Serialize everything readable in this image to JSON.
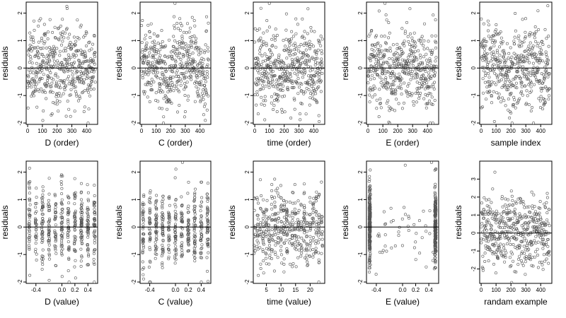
{
  "chart_data": [
    {
      "type": "scatter",
      "xlabel": "D (order)",
      "ylabel": "residuals",
      "xlim": [
        -10,
        475
      ],
      "ylim": [
        -2.05,
        2.4
      ],
      "xticks": [
        0,
        100,
        200,
        300,
        400
      ],
      "yticks": [
        -2,
        -1,
        0,
        1,
        2
      ],
      "reference_line": 0,
      "n_points": 460,
      "pattern": "index",
      "seed": 11
    },
    {
      "type": "scatter",
      "xlabel": "C (order)",
      "ylabel": "residuals",
      "xlim": [
        -10,
        475
      ],
      "ylim": [
        -2.05,
        2.4
      ],
      "xticks": [
        0,
        100,
        200,
        300,
        400
      ],
      "yticks": [
        -2,
        -1,
        0,
        1,
        2
      ],
      "reference_line": 0,
      "n_points": 460,
      "pattern": "index",
      "seed": 23
    },
    {
      "type": "scatter",
      "xlabel": "time (order)",
      "ylabel": "residuals",
      "xlim": [
        -10,
        475
      ],
      "ylim": [
        -2.05,
        2.4
      ],
      "xticks": [
        0,
        100,
        200,
        300,
        400
      ],
      "yticks": [
        -2,
        -1,
        0,
        1,
        2
      ],
      "reference_line": 0,
      "n_points": 460,
      "pattern": "index",
      "seed": 37
    },
    {
      "type": "scatter",
      "xlabel": "E (order)",
      "ylabel": "residuals",
      "xlim": [
        -10,
        475
      ],
      "ylim": [
        -2.05,
        2.4
      ],
      "xticks": [
        0,
        100,
        200,
        300,
        400
      ],
      "yticks": [
        -2,
        -1,
        0,
        1,
        2
      ],
      "reference_line": 0,
      "n_points": 460,
      "pattern": "index",
      "seed": 41
    },
    {
      "type": "scatter",
      "xlabel": "sample index",
      "ylabel": "residuals",
      "xlim": [
        -10,
        475
      ],
      "ylim": [
        -2.05,
        2.4
      ],
      "xticks": [
        0,
        100,
        200,
        300,
        400
      ],
      "yticks": [
        -2,
        -1,
        0,
        1,
        2
      ],
      "reference_line": 0,
      "n_points": 460,
      "pattern": "index",
      "seed": 53
    },
    {
      "type": "scatter",
      "xlabel": "D (value)",
      "ylabel": "residuals",
      "xlim": [
        -0.55,
        0.55
      ],
      "ylim": [
        -2.05,
        2.4
      ],
      "xticks": [
        -0.4,
        0,
        0.2,
        0.4
      ],
      "xtick_labels": [
        "-0.4",
        "0.0",
        "0.2",
        "0.4"
      ],
      "yticks": [
        -2,
        -1,
        0,
        1,
        2
      ],
      "reference_line": 0,
      "n_points": 460,
      "pattern": "columns",
      "levels": [
        -0.5,
        -0.4,
        -0.3,
        -0.2,
        -0.1,
        0,
        0.1,
        0.2,
        0.3,
        0.4,
        0.5
      ],
      "seed": 61
    },
    {
      "type": "scatter",
      "xlabel": "C (value)",
      "ylabel": "residuals",
      "xlim": [
        -0.55,
        0.55
      ],
      "ylim": [
        -2.05,
        2.4
      ],
      "xticks": [
        -0.4,
        0,
        0.2,
        0.4
      ],
      "xtick_labels": [
        "-0.4",
        "0.0",
        "0.2",
        "0.4"
      ],
      "yticks": [
        -2,
        -1,
        0,
        1,
        2
      ],
      "reference_line": 0,
      "n_points": 460,
      "pattern": "columns",
      "levels": [
        -0.5,
        -0.4,
        -0.3,
        -0.2,
        -0.1,
        0,
        0.1,
        0.2,
        0.3,
        0.4,
        0.5
      ],
      "seed": 71
    },
    {
      "type": "scatter",
      "xlabel": "time (value)",
      "ylabel": "residuals",
      "xlim": [
        0.5,
        25
      ],
      "ylim": [
        -2.05,
        2.4
      ],
      "xticks": [
        5,
        10,
        15,
        20
      ],
      "yticks": [
        -2,
        -1,
        0,
        1,
        2
      ],
      "reference_line": 0,
      "n_points": 460,
      "pattern": "columns",
      "levels": [
        1,
        2,
        3,
        4,
        5,
        6,
        7,
        8,
        9,
        10,
        11,
        12,
        13,
        14,
        15,
        16,
        17,
        18,
        19,
        20,
        21,
        22,
        23,
        24
      ],
      "seed": 83
    },
    {
      "type": "scatter",
      "xlabel": "E (value)",
      "ylabel": "residuals",
      "xlim": [
        -0.55,
        0.55
      ],
      "ylim": [
        -2.05,
        2.4
      ],
      "xticks": [
        -0.4,
        0,
        0.2,
        0.4
      ],
      "xtick_labels": [
        "-0.4",
        "0.0",
        "0.2",
        "0.4"
      ],
      "yticks": [
        -2,
        -1,
        0,
        1,
        2
      ],
      "reference_line": 0,
      "n_points": 460,
      "pattern": "binary",
      "levels": [
        -0.5,
        0.5
      ],
      "seed": 97
    },
    {
      "type": "scatter",
      "xlabel": "randam example",
      "ylabel": "residuals",
      "xlim": [
        -10,
        475
      ],
      "ylim": [
        -2.8,
        4.0
      ],
      "xticks": [
        0,
        100,
        200,
        300,
        400
      ],
      "yticks": [
        -2,
        -1,
        0,
        1,
        2,
        3
      ],
      "reference_line": 0,
      "n_points": 460,
      "pattern": "random",
      "seed": 101
    }
  ]
}
